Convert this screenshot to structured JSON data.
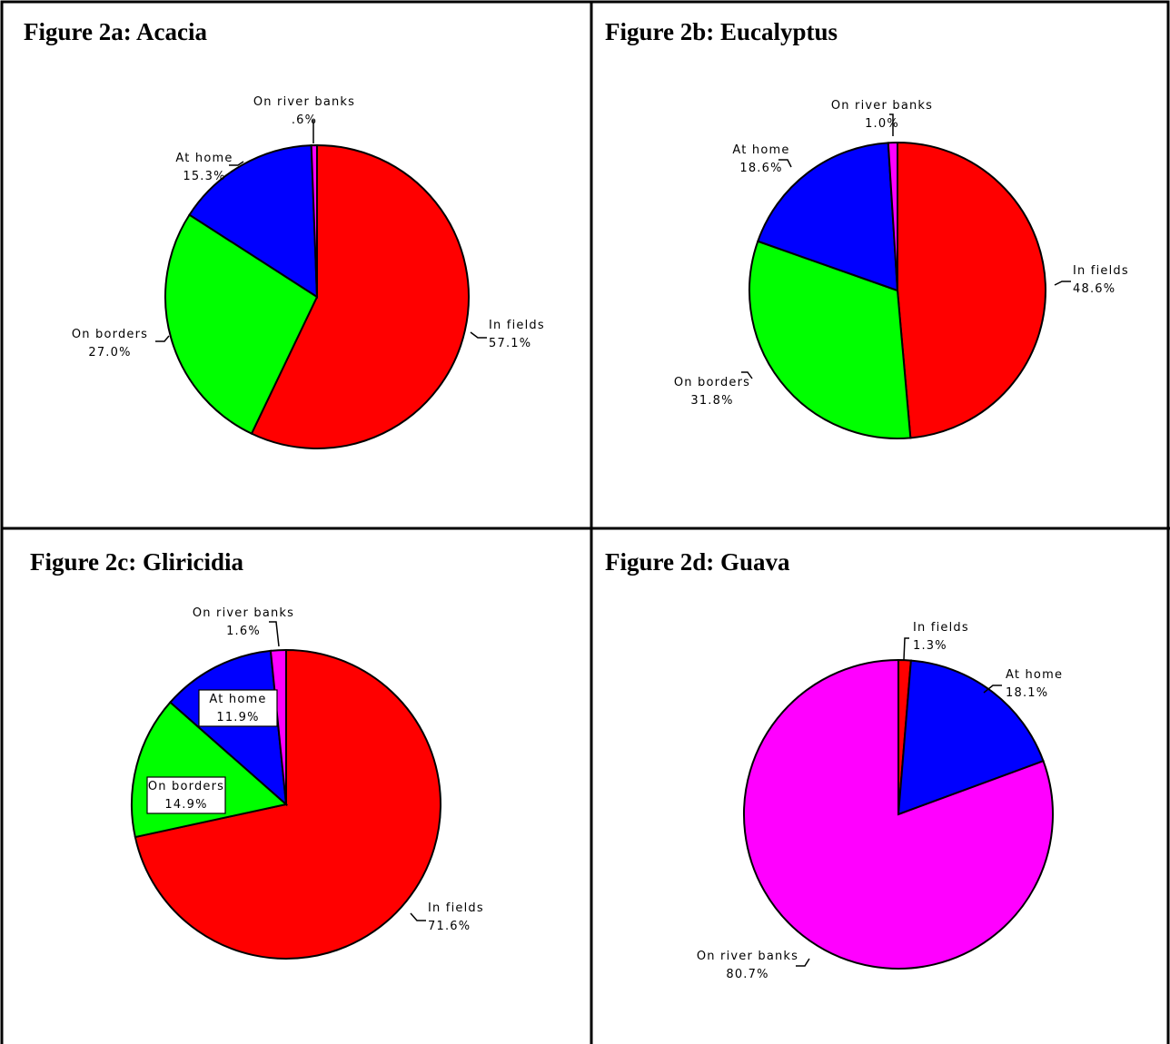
{
  "colors": {
    "in_fields": "#ff0000",
    "on_borders": "#00ff00",
    "at_home": "#0000ff",
    "on_river_banks": "#ff00ff"
  },
  "chart_data": [
    {
      "type": "pie",
      "title": "Figure 2a: Acacia",
      "slices": [
        {
          "label": "In fields",
          "value_label": "57.1%",
          "value": 57.1,
          "color": "#ff0000"
        },
        {
          "label": "On borders",
          "value_label": "27.0%",
          "value": 27.0,
          "color": "#00ff00"
        },
        {
          "label": "At home",
          "value_label": "15.3%",
          "value": 15.3,
          "color": "#0000ff"
        },
        {
          "label": "On river banks",
          "value_label": ".6%",
          "value": 0.6,
          "color": "#ff00ff"
        }
      ]
    },
    {
      "type": "pie",
      "title": "Figure 2b: Eucalyptus",
      "slices": [
        {
          "label": "In fields",
          "value_label": "48.6%",
          "value": 48.6,
          "color": "#ff0000"
        },
        {
          "label": "On borders",
          "value_label": "31.8%",
          "value": 31.8,
          "color": "#00ff00"
        },
        {
          "label": "At home",
          "value_label": "18.6%",
          "value": 18.6,
          "color": "#0000ff"
        },
        {
          "label": "On river banks",
          "value_label": "1.0%",
          "value": 1.0,
          "color": "#ff00ff"
        }
      ]
    },
    {
      "type": "pie",
      "title": "Figure 2c: Gliricidia",
      "slices": [
        {
          "label": "In fields",
          "value_label": "71.6%",
          "value": 71.6,
          "color": "#ff0000"
        },
        {
          "label": "On borders",
          "value_label": "14.9%",
          "value": 14.9,
          "color": "#00ff00"
        },
        {
          "label": "At home",
          "value_label": "11.9%",
          "value": 11.9,
          "color": "#0000ff"
        },
        {
          "label": "On river banks",
          "value_label": "1.6%",
          "value": 1.6,
          "color": "#ff00ff"
        }
      ]
    },
    {
      "type": "pie",
      "title": "Figure 2d: Guava",
      "slices": [
        {
          "label": "In fields",
          "value_label": "1.3%",
          "value": 1.3,
          "color": "#ff0000"
        },
        {
          "label": "At home",
          "value_label": "18.1%",
          "value": 18.1,
          "color": "#0000ff"
        },
        {
          "label": "On river banks",
          "value_label": "80.7%",
          "value": 80.7,
          "color": "#ff00ff"
        }
      ]
    }
  ]
}
